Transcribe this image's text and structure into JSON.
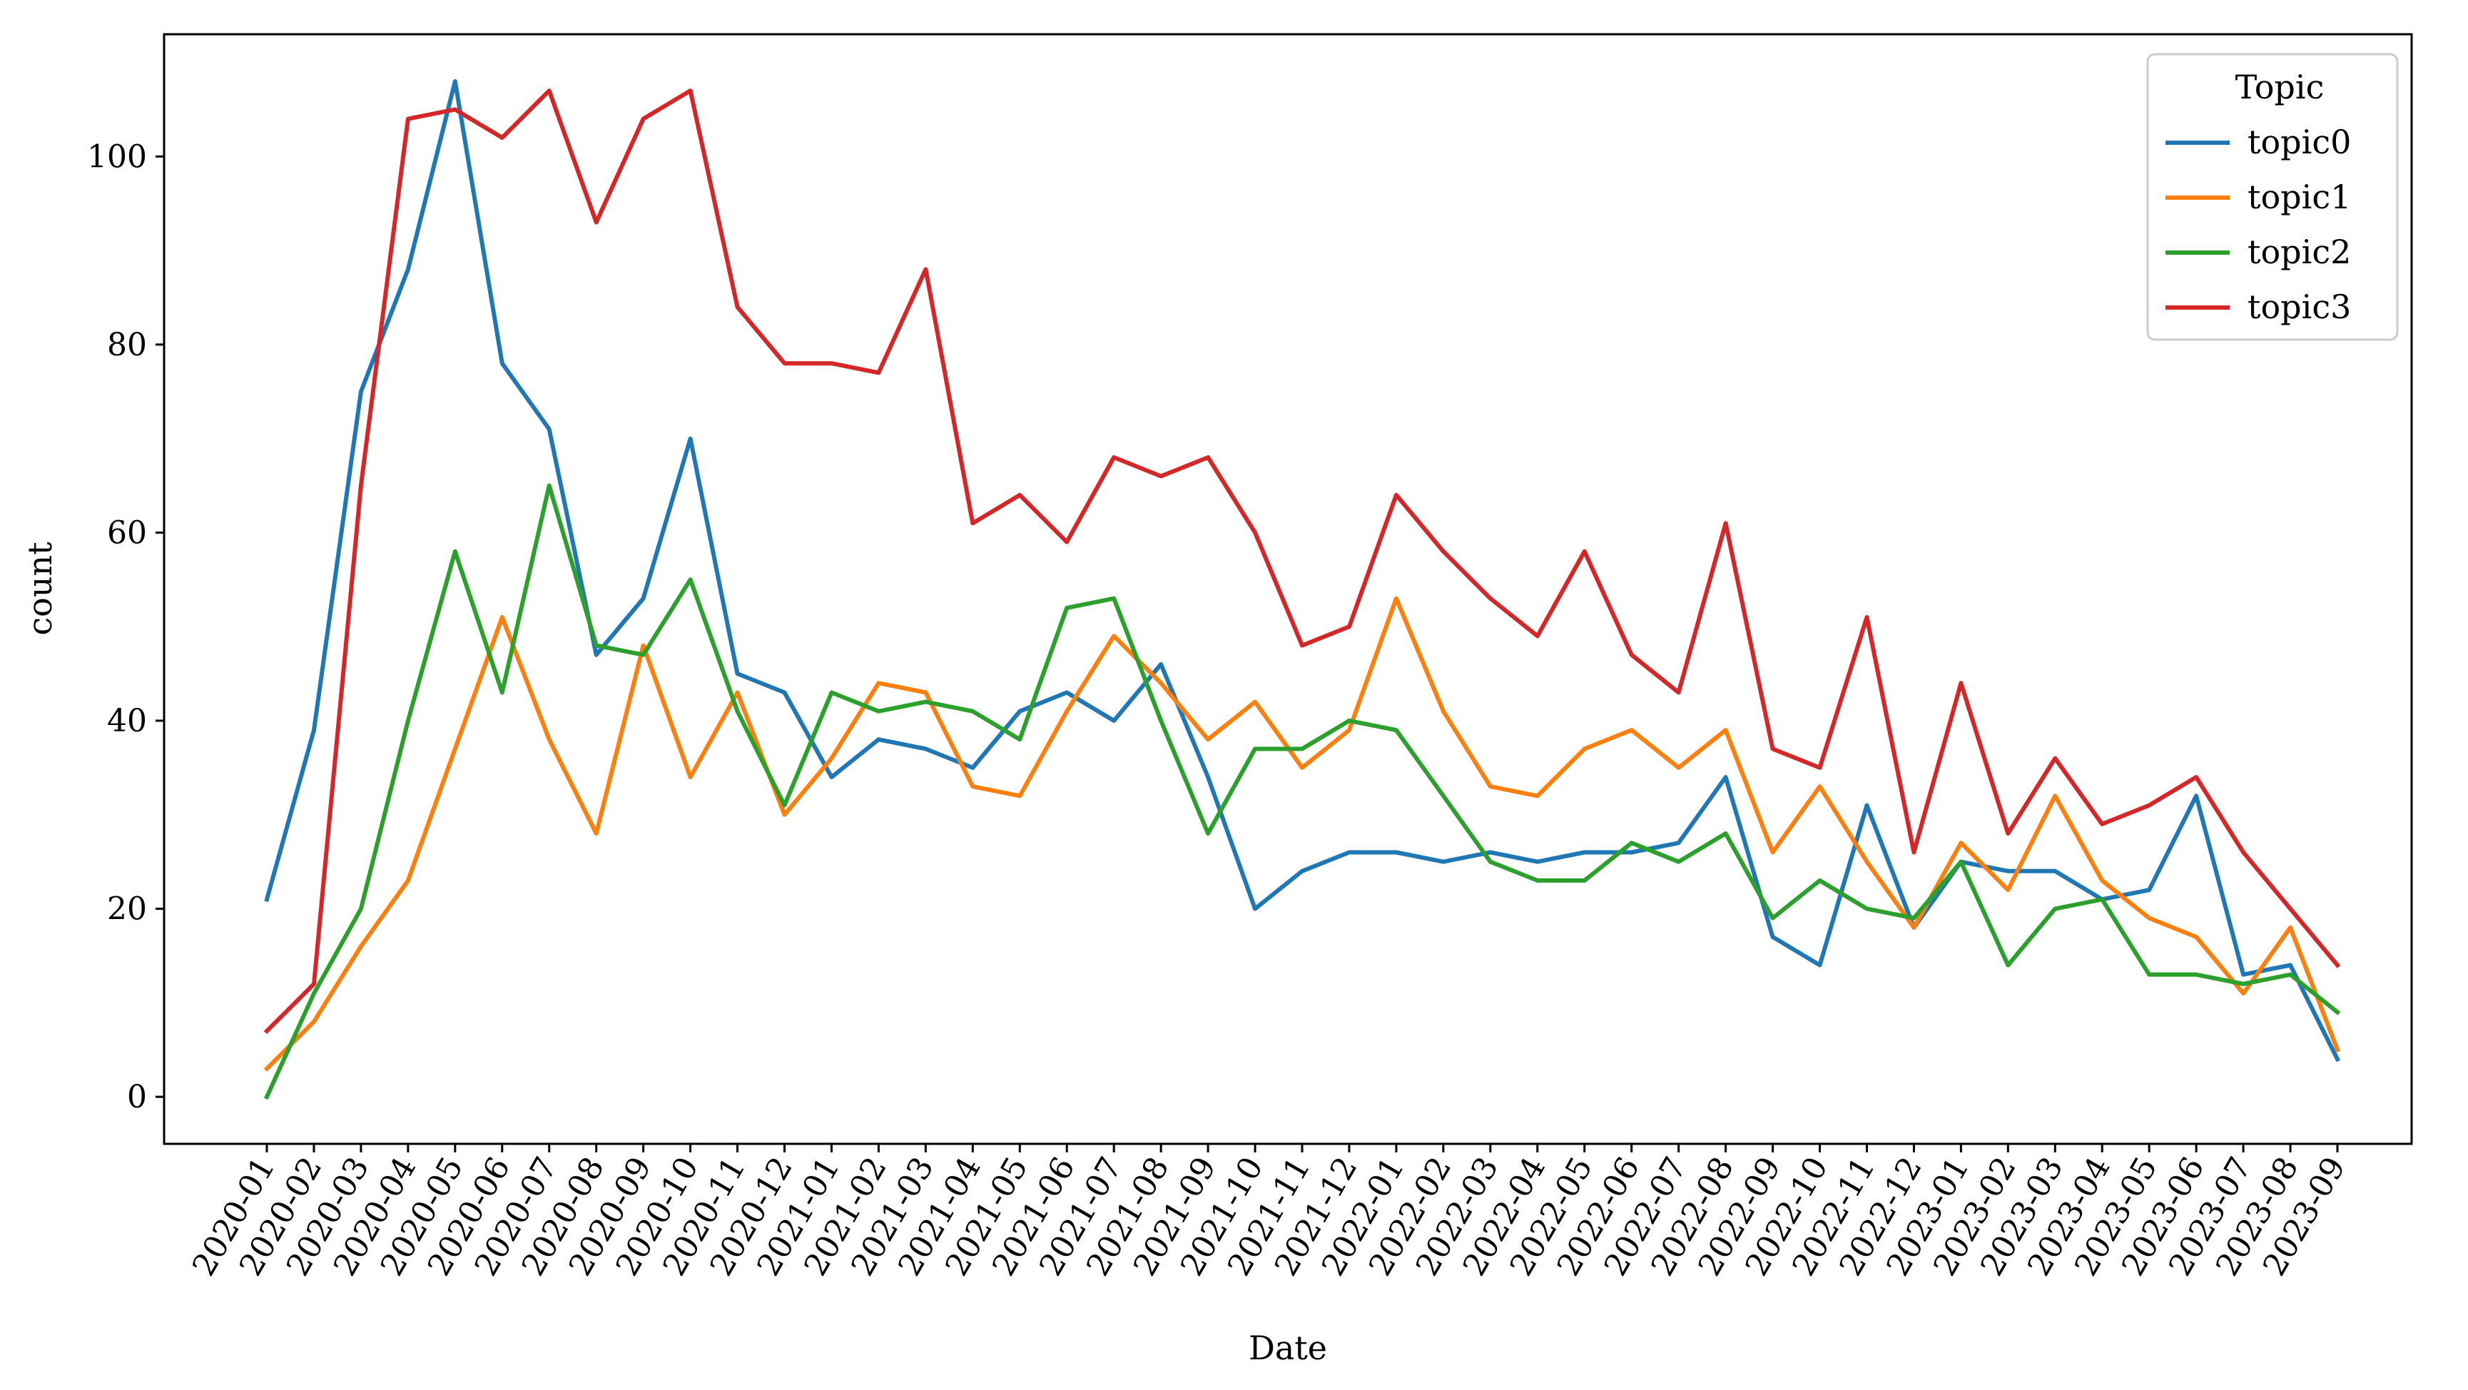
{
  "chart_data": {
    "type": "line",
    "xlabel": "Date",
    "ylabel": "count",
    "ylim": [
      -5,
      113
    ],
    "yticks": [
      0,
      20,
      40,
      60,
      80,
      100
    ],
    "grid": false,
    "legend": {
      "title": "Topic",
      "position": "top-right"
    },
    "x": [
      "2020-01",
      "2020-02",
      "2020-03",
      "2020-04",
      "2020-05",
      "2020-06",
      "2020-07",
      "2020-08",
      "2020-09",
      "2020-10",
      "2020-11",
      "2020-12",
      "2021-01",
      "2021-02",
      "2021-03",
      "2021-04",
      "2021-05",
      "2021-06",
      "2021-07",
      "2021-08",
      "2021-09",
      "2021-10",
      "2021-11",
      "2021-12",
      "2022-01",
      "2022-02",
      "2022-03",
      "2022-04",
      "2022-05",
      "2022-06",
      "2022-07",
      "2022-08",
      "2022-09",
      "2022-10",
      "2022-11",
      "2022-12",
      "2023-01",
      "2023-02",
      "2023-03",
      "2023-04",
      "2023-05",
      "2023-06",
      "2023-07",
      "2023-08",
      "2023-09"
    ],
    "series": [
      {
        "name": "topic0",
        "color": "#1f77b4",
        "values": [
          21,
          39,
          75,
          88,
          108,
          78,
          71,
          47,
          53,
          70,
          45,
          43,
          34,
          38,
          37,
          35,
          41,
          43,
          40,
          46,
          34,
          20,
          24,
          26,
          26,
          25,
          26,
          25,
          26,
          26,
          27,
          34,
          17,
          14,
          31,
          18,
          25,
          24,
          24,
          21,
          22,
          32,
          13,
          14,
          4
        ]
      },
      {
        "name": "topic1",
        "color": "#ff7f0e",
        "values": [
          3,
          8,
          16,
          23,
          37,
          51,
          38,
          28,
          48,
          34,
          43,
          30,
          36,
          44,
          43,
          33,
          32,
          41,
          49,
          44,
          38,
          42,
          35,
          39,
          53,
          41,
          33,
          32,
          37,
          39,
          35,
          39,
          26,
          33,
          25,
          18,
          27,
          22,
          32,
          23,
          19,
          17,
          11,
          18,
          5
        ]
      },
      {
        "name": "topic2",
        "color": "#2ca02c",
        "values": [
          0,
          11,
          20,
          40,
          58,
          43,
          65,
          48,
          47,
          55,
          41,
          31,
          43,
          41,
          42,
          41,
          38,
          52,
          53,
          40,
          28,
          37,
          37,
          40,
          39,
          32,
          25,
          23,
          23,
          27,
          25,
          28,
          19,
          23,
          20,
          19,
          25,
          14,
          20,
          21,
          13,
          13,
          12,
          13,
          9
        ]
      },
      {
        "name": "topic3",
        "color": "#d62728",
        "values": [
          7,
          12,
          65,
          104,
          105,
          102,
          107,
          93,
          104,
          107,
          84,
          78,
          78,
          77,
          88,
          61,
          64,
          59,
          68,
          66,
          68,
          60,
          48,
          50,
          64,
          58,
          53,
          49,
          58,
          47,
          43,
          61,
          37,
          35,
          51,
          26,
          44,
          28,
          36,
          29,
          31,
          34,
          26,
          20,
          14
        ]
      }
    ]
  }
}
